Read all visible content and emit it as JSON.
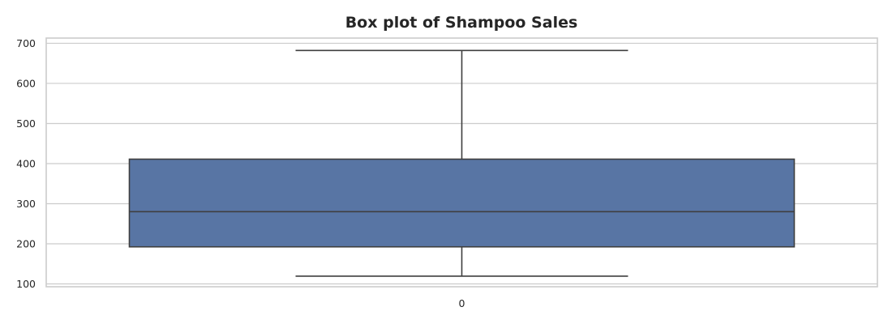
{
  "chart_data": {
    "type": "box",
    "title": "Box plot of Shampoo Sales",
    "xlabel": "",
    "ylabel": "",
    "categories": [
      "0"
    ],
    "boxes": [
      {
        "category": "0",
        "whisker_low": 119.3,
        "q1": 192.45,
        "median": 280.15,
        "q3": 411.1,
        "whisker_high": 682.0
      }
    ],
    "ylim": [
      93,
      713
    ],
    "yticks": [
      100,
      200,
      300,
      400,
      500,
      600,
      700
    ],
    "grid": "horizontal",
    "colors": {
      "box_fill": "#5875a4",
      "lines": "#3f3f3f",
      "grid": "#cccccc"
    }
  }
}
